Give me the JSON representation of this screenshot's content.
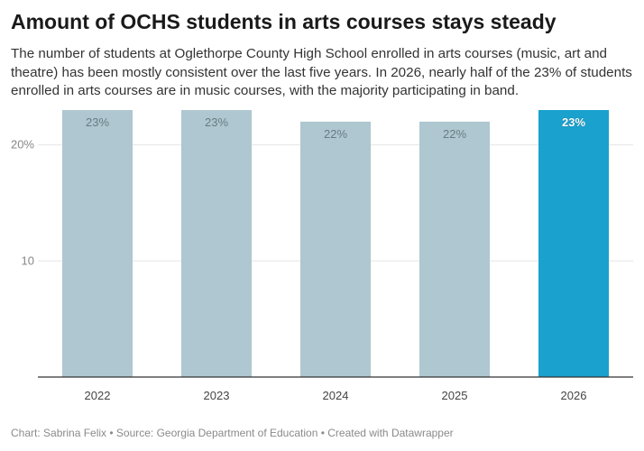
{
  "title": "Amount of OCHS students in arts courses stays steady",
  "subtitle": "The number of students at Oglethorpe County High School enrolled in arts courses (music, art and theatre) has been mostly consistent over the last five years. In 2026, nearly half of the 23% of students enrolled in arts courses are in music courses, with the majority participating in band.",
  "footer": "Chart: Sabrina Felix • Source: Georgia Department of Education • Created with Datawrapper",
  "colors": {
    "bar": "#aec7d0",
    "highlight": "#1aa1ce",
    "label": "#6b7c83",
    "highlight_label": "#ffffff",
    "axis": "#333333",
    "grid": "#e6e6e6"
  },
  "chart_data": {
    "type": "bar",
    "categories": [
      "2022",
      "2023",
      "2024",
      "2025",
      "2026"
    ],
    "values": [
      23,
      23,
      22,
      22,
      23
    ],
    "value_labels": [
      "23%",
      "23%",
      "22%",
      "22%",
      "23%"
    ],
    "highlight_index": 4,
    "ylim": [
      0,
      23
    ],
    "yticks": [
      10,
      20
    ],
    "ytick_labels": [
      "10",
      "20%"
    ],
    "grid": true,
    "xlabel": "",
    "ylabel": ""
  }
}
